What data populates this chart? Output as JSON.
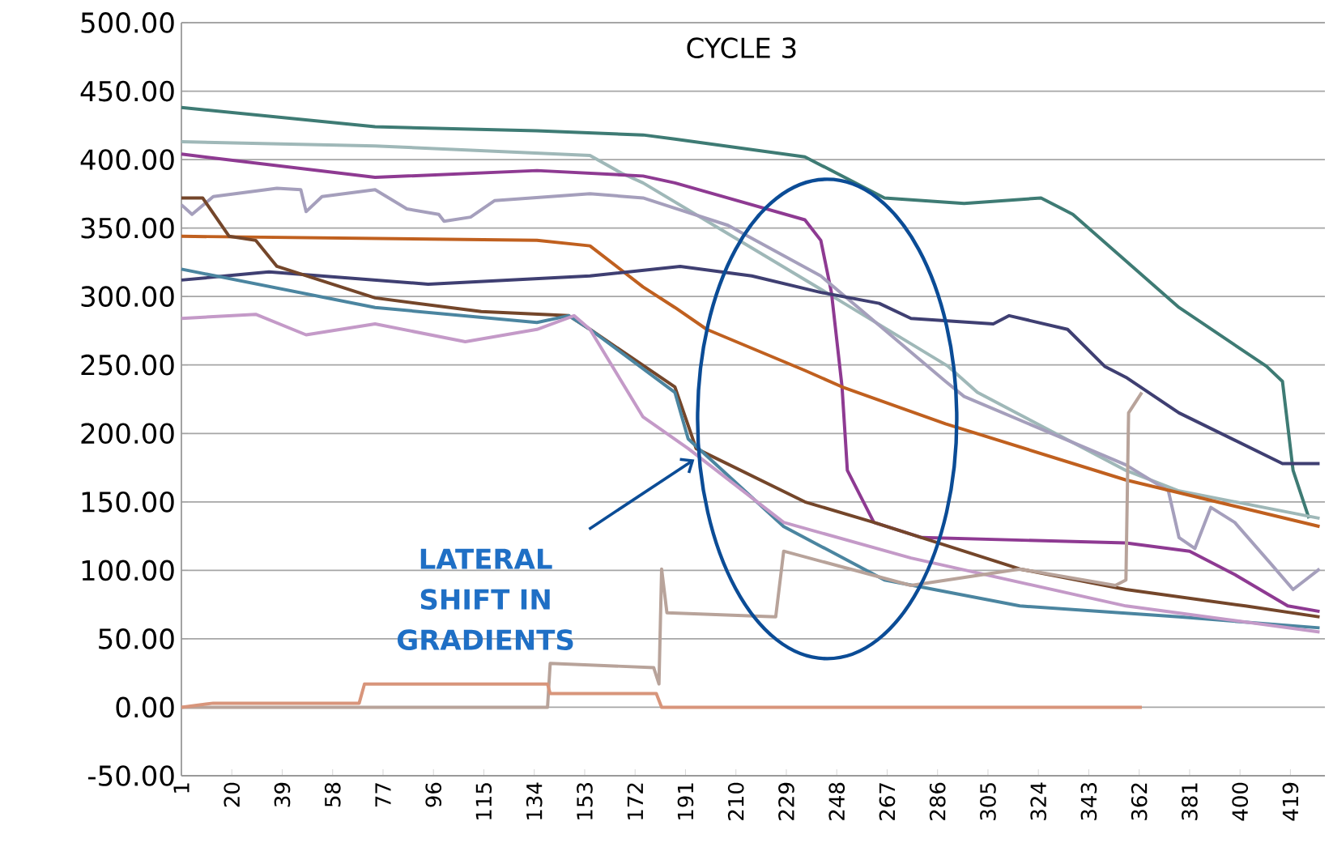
{
  "chart_data": {
    "type": "line",
    "title": "CYCLE 3",
    "xlim": [
      1,
      432
    ],
    "xticks": [
      1,
      20,
      39,
      58,
      77,
      96,
      115,
      134,
      153,
      172,
      191,
      210,
      229,
      248,
      267,
      286,
      305,
      324,
      343,
      362,
      381,
      400,
      419
    ],
    "ylim": [
      -50,
      500
    ],
    "yticks": [
      {
        "value": -50,
        "label": "-50.00"
      },
      {
        "value": 0,
        "label": "0.00"
      },
      {
        "value": 50,
        "label": "50.00"
      },
      {
        "value": 100,
        "label": "100.00"
      },
      {
        "value": 150,
        "label": "150.00"
      },
      {
        "value": 200,
        "label": "200.00"
      },
      {
        "value": 250,
        "label": "250.00"
      },
      {
        "value": 300,
        "label": "300.00"
      },
      {
        "value": 350,
        "label": "350.00"
      },
      {
        "value": 400,
        "label": "400.00"
      },
      {
        "value": 450,
        "label": "450.00"
      },
      {
        "value": 500,
        "label": "500.00"
      }
    ],
    "grid": "y",
    "marker": "none",
    "series": [
      {
        "color": "#3e7b74",
        "x": [
          1,
          74,
          135,
          175,
          187,
          236,
          266,
          296,
          325,
          337,
          377,
          410,
          416,
          420,
          426
        ],
        "values": [
          438,
          424,
          421,
          418,
          415,
          402,
          372,
          368,
          372,
          360,
          292,
          249,
          238,
          173,
          138
        ]
      },
      {
        "color": "#9fb8b8",
        "x": [
          1,
          74,
          155,
          167,
          175,
          244,
          290,
          301,
          357,
          377,
          430
        ],
        "values": [
          413,
          410,
          403,
          390,
          383,
          303,
          249,
          230,
          173,
          158,
          138
        ]
      },
      {
        "color": "#8e3a92",
        "x": [
          1,
          74,
          135,
          175,
          187,
          236,
          242,
          246,
          250,
          252,
          262,
          280,
          357,
          381,
          398,
          418,
          430
        ],
        "values": [
          404,
          387,
          392,
          388,
          383,
          356,
          341,
          303,
          234,
          173,
          135,
          124,
          120,
          114,
          97,
          74,
          70
        ]
      },
      {
        "color": "#a59fbc",
        "x": [
          1,
          5,
          13,
          37,
          46,
          48,
          54,
          74,
          86,
          98,
          100,
          110,
          119,
          155,
          175,
          207,
          242,
          289,
          296,
          357,
          373,
          377,
          383,
          389,
          398,
          412,
          420,
          430
        ],
        "values": [
          367,
          360,
          373,
          379,
          378,
          362,
          373,
          378,
          364,
          360,
          355,
          358,
          370,
          375,
          372,
          352,
          315,
          238,
          227,
          177,
          158,
          124,
          116,
          146,
          135,
          104,
          86,
          101
        ]
      },
      {
        "color": "#c0601f",
        "x": [
          1,
          135,
          155,
          175,
          187,
          199,
          236,
          250,
          289,
          357,
          430
        ],
        "values": [
          344,
          341,
          337,
          307,
          292,
          276,
          246,
          234,
          207,
          166,
          132
        ]
      },
      {
        "color": "#3f3f72",
        "x": [
          1,
          34,
          94,
          155,
          189,
          216,
          242,
          264,
          276,
          307,
          313,
          335,
          349,
          357,
          377,
          416,
          430
        ],
        "values": [
          312,
          318,
          309,
          315,
          322,
          315,
          303,
          295,
          284,
          280,
          286,
          276,
          249,
          241,
          215,
          178,
          178
        ]
      },
      {
        "color": "#74462a",
        "x": [
          1,
          9,
          19,
          29,
          37,
          74,
          114,
          147,
          155,
          187,
          195,
          236,
          262,
          317,
          357,
          402,
          430
        ],
        "values": [
          372,
          372,
          344,
          341,
          322,
          299,
          289,
          286,
          276,
          234,
          189,
          150,
          135,
          101,
          86,
          74,
          66
        ]
      },
      {
        "color": "#4b85a0",
        "x": [
          1,
          74,
          135,
          147,
          155,
          187,
          192,
          228,
          266,
          317,
          377,
          430
        ],
        "values": [
          320,
          292,
          281,
          286,
          276,
          230,
          196,
          132,
          93,
          74,
          66,
          58
        ]
      },
      {
        "color": "#c49ac8",
        "x": [
          1,
          29,
          48,
          74,
          108,
          135,
          149,
          155,
          175,
          192,
          228,
          276,
          357,
          430
        ],
        "values": [
          284,
          287,
          272,
          280,
          267,
          276,
          286,
          276,
          212,
          189,
          135,
          109,
          74,
          55
        ]
      },
      {
        "color": "#b8a39a",
        "x": [
          1,
          139,
          140,
          179,
          181,
          182,
          184,
          225,
          228,
          276,
          317,
          353,
          357,
          358,
          363
        ],
        "values": [
          0,
          0,
          32,
          29,
          17,
          101,
          69,
          66,
          114,
          89,
          101,
          89,
          93,
          215,
          230
        ]
      },
      {
        "color": "#d8957b",
        "x": [
          1,
          13,
          68,
          70,
          139,
          140,
          180,
          182,
          363
        ],
        "values": [
          0,
          3,
          3,
          17,
          17,
          10,
          10,
          0,
          0
        ]
      }
    ],
    "annotations": [
      "LATERAL SHIFT IN GRADIENTS"
    ]
  }
}
